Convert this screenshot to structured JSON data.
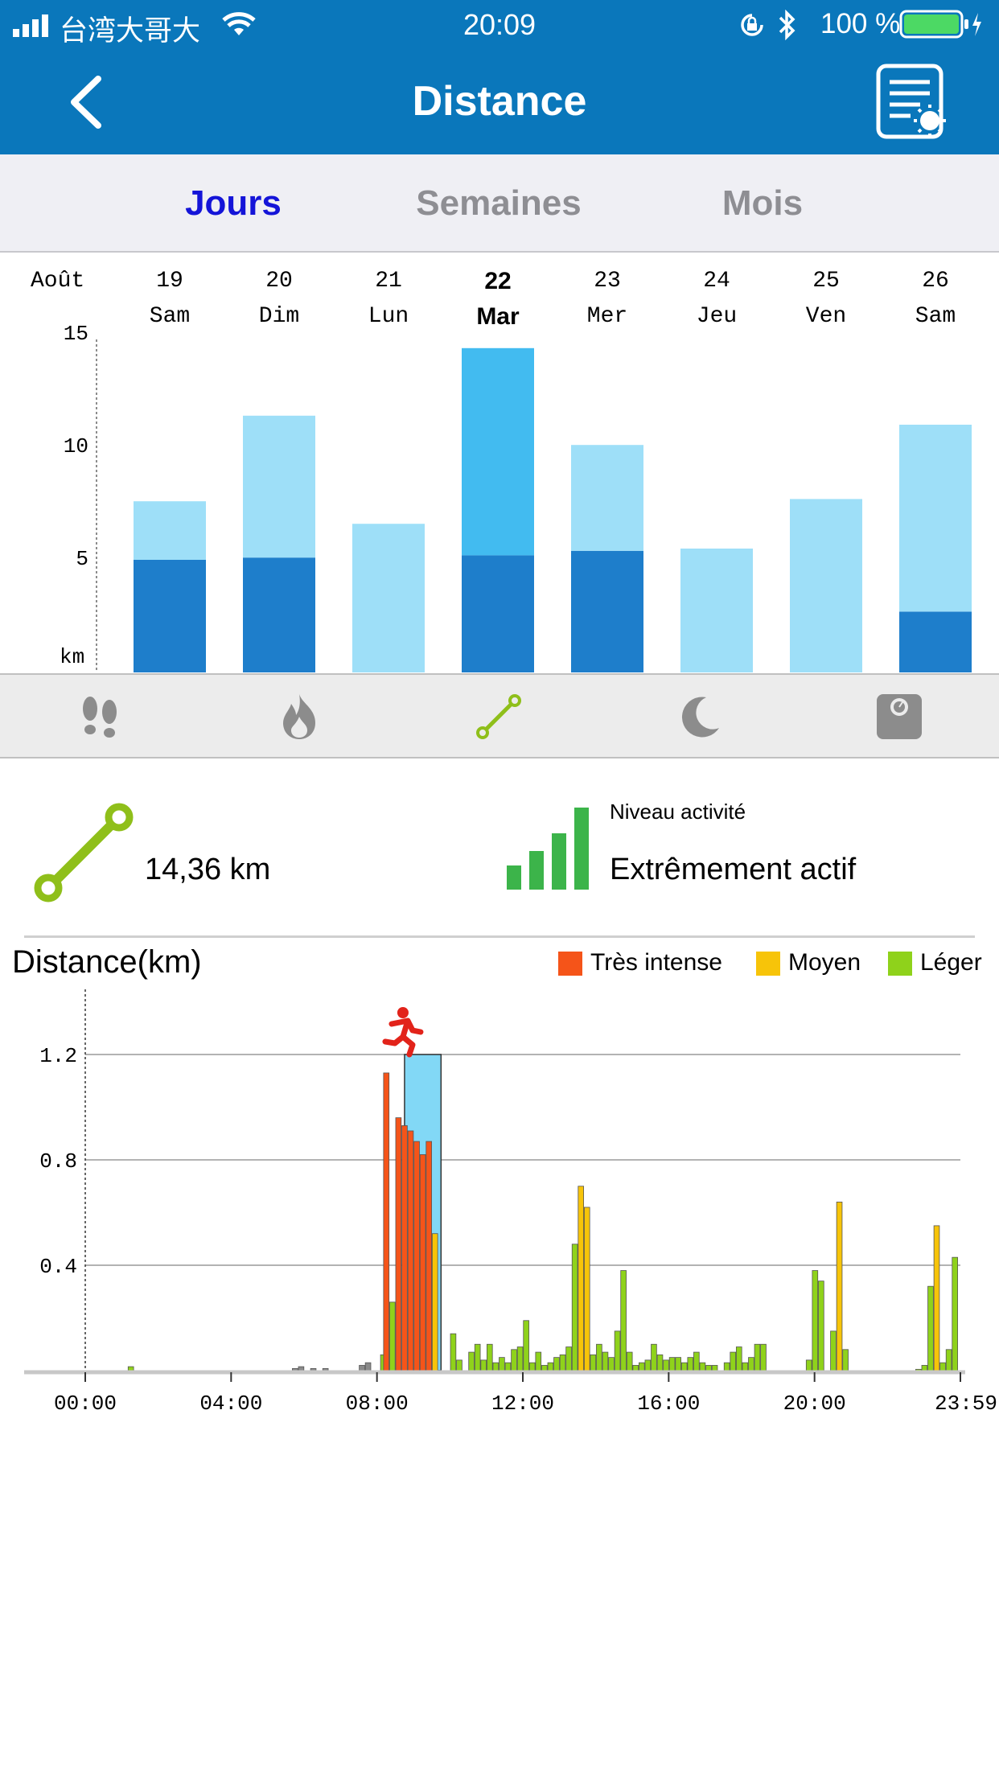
{
  "status_bar": {
    "carrier": "台湾大哥大",
    "time": "20:09",
    "battery": "100 %"
  },
  "header": {
    "title": "Distance"
  },
  "tabs": [
    {
      "label": "Jours",
      "active": true
    },
    {
      "label": "Semaines",
      "active": false
    },
    {
      "label": "Mois",
      "active": false
    }
  ],
  "week_chart": {
    "month_label": "Août",
    "unit_label": "km",
    "chart_data": {
      "type": "bar",
      "stacked": true,
      "categories": [
        "19 Sam",
        "20 Dim",
        "21 Lun",
        "22 Mar",
        "23 Mer",
        "24 Jeu",
        "25 Ven",
        "26 Sam"
      ],
      "days": [
        {
          "num": "19",
          "name": "Sam"
        },
        {
          "num": "20",
          "name": "Dim"
        },
        {
          "num": "21",
          "name": "Lun"
        },
        {
          "num": "22",
          "name": "Mar",
          "selected": true
        },
        {
          "num": "23",
          "name": "Mer"
        },
        {
          "num": "24",
          "name": "Jeu"
        },
        {
          "num": "25",
          "name": "Ven"
        },
        {
          "num": "26",
          "name": "Sam"
        }
      ],
      "series": [
        {
          "values": [
            5.0,
            5.1,
            0,
            5.2,
            5.4,
            0,
            0,
            2.7
          ],
          "color": "#1e7ecb"
        },
        {
          "values": [
            2.6,
            6.3,
            6.6,
            9.2,
            4.7,
            5.5,
            7.7,
            8.3
          ],
          "color": "#9edff8"
        }
      ],
      "selected_color": "#42bbf0",
      "ylim": [
        0,
        15
      ],
      "yticks": [
        5,
        10,
        15
      ]
    }
  },
  "metrics": [
    {
      "icon": "footprints-icon",
      "active": false
    },
    {
      "icon": "flame-icon",
      "active": false
    },
    {
      "icon": "distance-icon",
      "active": true
    },
    {
      "icon": "moon-icon",
      "active": false
    },
    {
      "icon": "scale-icon",
      "active": false
    }
  ],
  "summary": {
    "distance": "14,36 km",
    "level_caption": "Niveau activité",
    "level_value": "Extrêmement actif"
  },
  "daily_chart": {
    "title": "Distance(km)",
    "legend": [
      {
        "label": "Très intense",
        "color": "#f55419"
      },
      {
        "label": "Moyen",
        "color": "#f7c409"
      },
      {
        "label": "Léger",
        "color": "#8fd21b"
      }
    ],
    "chart_data": {
      "type": "bar",
      "xlabels": [
        "00:00",
        "04:00",
        "08:00",
        "12:00",
        "16:00",
        "20:00",
        "23:59"
      ],
      "ylim": [
        0,
        1.3
      ],
      "yticks": [
        0.4,
        0.8,
        1.2
      ],
      "ytick_labels": [
        "0.4",
        "0.8",
        "1.2"
      ],
      "highlight_range_minutes": [
        525,
        585
      ],
      "bars": [
        [
          75,
          0.015,
          "g"
        ],
        [
          345,
          0.008,
          "x"
        ],
        [
          355,
          0.015,
          "x"
        ],
        [
          375,
          0.008,
          "x"
        ],
        [
          395,
          0.008,
          "x"
        ],
        [
          455,
          0.02,
          "x"
        ],
        [
          465,
          0.03,
          "x"
        ],
        [
          490,
          0.06,
          "g"
        ],
        [
          495,
          1.13,
          "r"
        ],
        [
          505,
          0.26,
          "g"
        ],
        [
          515,
          0.96,
          "r"
        ],
        [
          525,
          0.93,
          "r"
        ],
        [
          535,
          0.91,
          "r"
        ],
        [
          545,
          0.87,
          "r"
        ],
        [
          555,
          0.82,
          "r"
        ],
        [
          565,
          0.87,
          "r"
        ],
        [
          575,
          0.52,
          "y"
        ],
        [
          605,
          0.14,
          "g"
        ],
        [
          615,
          0.04,
          "g"
        ],
        [
          635,
          0.07,
          "g"
        ],
        [
          645,
          0.1,
          "g"
        ],
        [
          655,
          0.04,
          "g"
        ],
        [
          665,
          0.1,
          "g"
        ],
        [
          675,
          0.03,
          "g"
        ],
        [
          685,
          0.05,
          "g"
        ],
        [
          695,
          0.03,
          "g"
        ],
        [
          705,
          0.08,
          "g"
        ],
        [
          715,
          0.09,
          "g"
        ],
        [
          725,
          0.19,
          "g"
        ],
        [
          735,
          0.03,
          "g"
        ],
        [
          745,
          0.07,
          "g"
        ],
        [
          755,
          0.02,
          "g"
        ],
        [
          765,
          0.03,
          "g"
        ],
        [
          775,
          0.05,
          "g"
        ],
        [
          785,
          0.06,
          "g"
        ],
        [
          795,
          0.09,
          "g"
        ],
        [
          805,
          0.48,
          "g"
        ],
        [
          815,
          0.7,
          "y"
        ],
        [
          825,
          0.62,
          "y"
        ],
        [
          835,
          0.06,
          "g"
        ],
        [
          845,
          0.1,
          "g"
        ],
        [
          855,
          0.07,
          "g"
        ],
        [
          865,
          0.05,
          "g"
        ],
        [
          875,
          0.15,
          "g"
        ],
        [
          885,
          0.38,
          "g"
        ],
        [
          895,
          0.07,
          "g"
        ],
        [
          905,
          0.02,
          "g"
        ],
        [
          915,
          0.03,
          "g"
        ],
        [
          925,
          0.04,
          "g"
        ],
        [
          935,
          0.1,
          "g"
        ],
        [
          945,
          0.06,
          "g"
        ],
        [
          955,
          0.04,
          "g"
        ],
        [
          965,
          0.05,
          "g"
        ],
        [
          975,
          0.05,
          "g"
        ],
        [
          985,
          0.03,
          "g"
        ],
        [
          995,
          0.05,
          "g"
        ],
        [
          1005,
          0.07,
          "g"
        ],
        [
          1015,
          0.03,
          "g"
        ],
        [
          1025,
          0.02,
          "g"
        ],
        [
          1035,
          0.02,
          "g"
        ],
        [
          1055,
          0.03,
          "g"
        ],
        [
          1065,
          0.07,
          "g"
        ],
        [
          1075,
          0.09,
          "g"
        ],
        [
          1085,
          0.03,
          "g"
        ],
        [
          1095,
          0.05,
          "g"
        ],
        [
          1105,
          0.1,
          "g"
        ],
        [
          1115,
          0.1,
          "g"
        ],
        [
          1190,
          0.04,
          "g"
        ],
        [
          1200,
          0.38,
          "g"
        ],
        [
          1210,
          0.34,
          "g"
        ],
        [
          1230,
          0.15,
          "g"
        ],
        [
          1240,
          0.64,
          "y"
        ],
        [
          1250,
          0.08,
          "g"
        ],
        [
          1370,
          0.005,
          "g"
        ],
        [
          1380,
          0.02,
          "g"
        ],
        [
          1390,
          0.32,
          "g"
        ],
        [
          1400,
          0.55,
          "y"
        ],
        [
          1410,
          0.03,
          "g"
        ],
        [
          1420,
          0.08,
          "g"
        ],
        [
          1430,
          0.43,
          "g"
        ]
      ]
    }
  }
}
